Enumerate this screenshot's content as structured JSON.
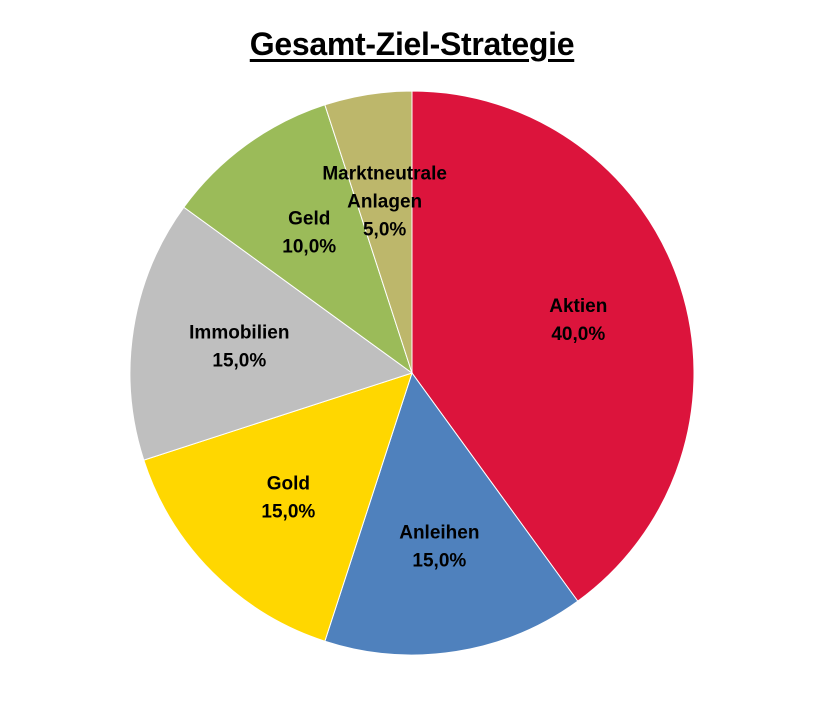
{
  "chart_data": {
    "type": "pie",
    "title": "Gesamt-Ziel-Strategie",
    "start_angle_deg": 0,
    "direction": "clockwise",
    "slices": [
      {
        "name": "Aktien",
        "label_lines": [
          "Aktien"
        ],
        "value": 40.0,
        "display": "40,0%",
        "color": "#DC143C"
      },
      {
        "name": "Anleihen",
        "label_lines": [
          "Anleihen"
        ],
        "value": 15.0,
        "display": "15,0%",
        "color": "#4F81BD"
      },
      {
        "name": "Gold",
        "label_lines": [
          "Gold"
        ],
        "value": 15.0,
        "display": "15,0%",
        "color": "#FFD700"
      },
      {
        "name": "Immobilien",
        "label_lines": [
          "Immobilien"
        ],
        "value": 15.0,
        "display": "15,0%",
        "color": "#BFBFBF"
      },
      {
        "name": "Geld",
        "label_lines": [
          "Geld"
        ],
        "value": 10.0,
        "display": "10,0%",
        "color": "#9BBB59"
      },
      {
        "name": "Marktneutrale Anlagen",
        "label_lines": [
          "Marktneutrale",
          "Anlagen"
        ],
        "value": 5.0,
        "display": "5,0%",
        "color": "#BDB76B"
      }
    ],
    "legend": "none",
    "data_labels": "inside"
  }
}
